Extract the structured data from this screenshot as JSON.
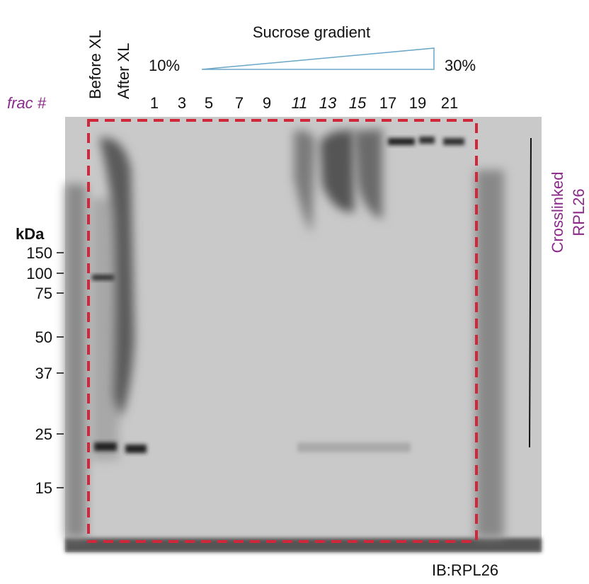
{
  "lanes": {
    "before": "Before XL",
    "after": "After XL"
  },
  "gradient": {
    "title": "Sucrose gradient",
    "low": "10%",
    "high": "30%"
  },
  "fractions": {
    "label": "frac #",
    "items": [
      {
        "label": "1",
        "color": "#111111"
      },
      {
        "label": "3",
        "color": "#111111"
      },
      {
        "label": "5",
        "color": "#111111"
      },
      {
        "label": "7",
        "color": "#111111"
      },
      {
        "label": "9",
        "color": "#111111"
      },
      {
        "label": "11",
        "color": "#8b2a8b"
      },
      {
        "label": "13",
        "color": "#8b2a8b"
      },
      {
        "label": "15",
        "color": "#8b2a8b"
      },
      {
        "label": "17",
        "color": "#111111"
      },
      {
        "label": "19",
        "color": "#111111"
      },
      {
        "label": "21",
        "color": "#111111"
      }
    ]
  },
  "markers": {
    "unit": "kDa",
    "labels": [
      "150",
      "100",
      "75",
      "50",
      "37",
      "25",
      "15"
    ]
  },
  "annotation": {
    "line1": "Crosslinked",
    "line2": "RPL26"
  },
  "footer": "IB:RPL26"
}
